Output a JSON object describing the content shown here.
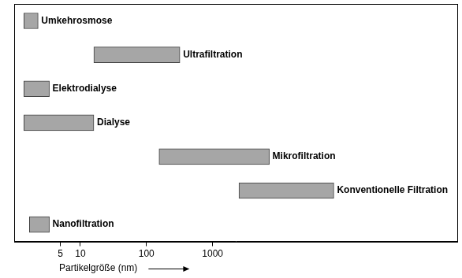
{
  "chart_data": {
    "type": "bar",
    "orientation": "horizontal",
    "categories": [
      "Umkehrosmose",
      "Ultrafiltration",
      "Elektrodialyse",
      "Dialyse",
      "Mikrofiltration",
      "Konventionelle Filtration",
      "Nanofiltration"
    ],
    "values": [
      [
        1.4,
        2.3
      ],
      [
        16,
        320
      ],
      [
        1.4,
        3.4
      ],
      [
        1.4,
        16
      ],
      [
        155,
        7200
      ],
      [
        2500,
        68000
      ],
      [
        1.7,
        3.4
      ]
    ],
    "color": "#a6a6a6",
    "x_label": "Partikelgröße (nm)",
    "log": "x",
    "xlim": [
      1,
      5000000
    ],
    "xticks": [
      5,
      10,
      100,
      1000
    ],
    "tick_labels": "x",
    "grid": false
  }
}
